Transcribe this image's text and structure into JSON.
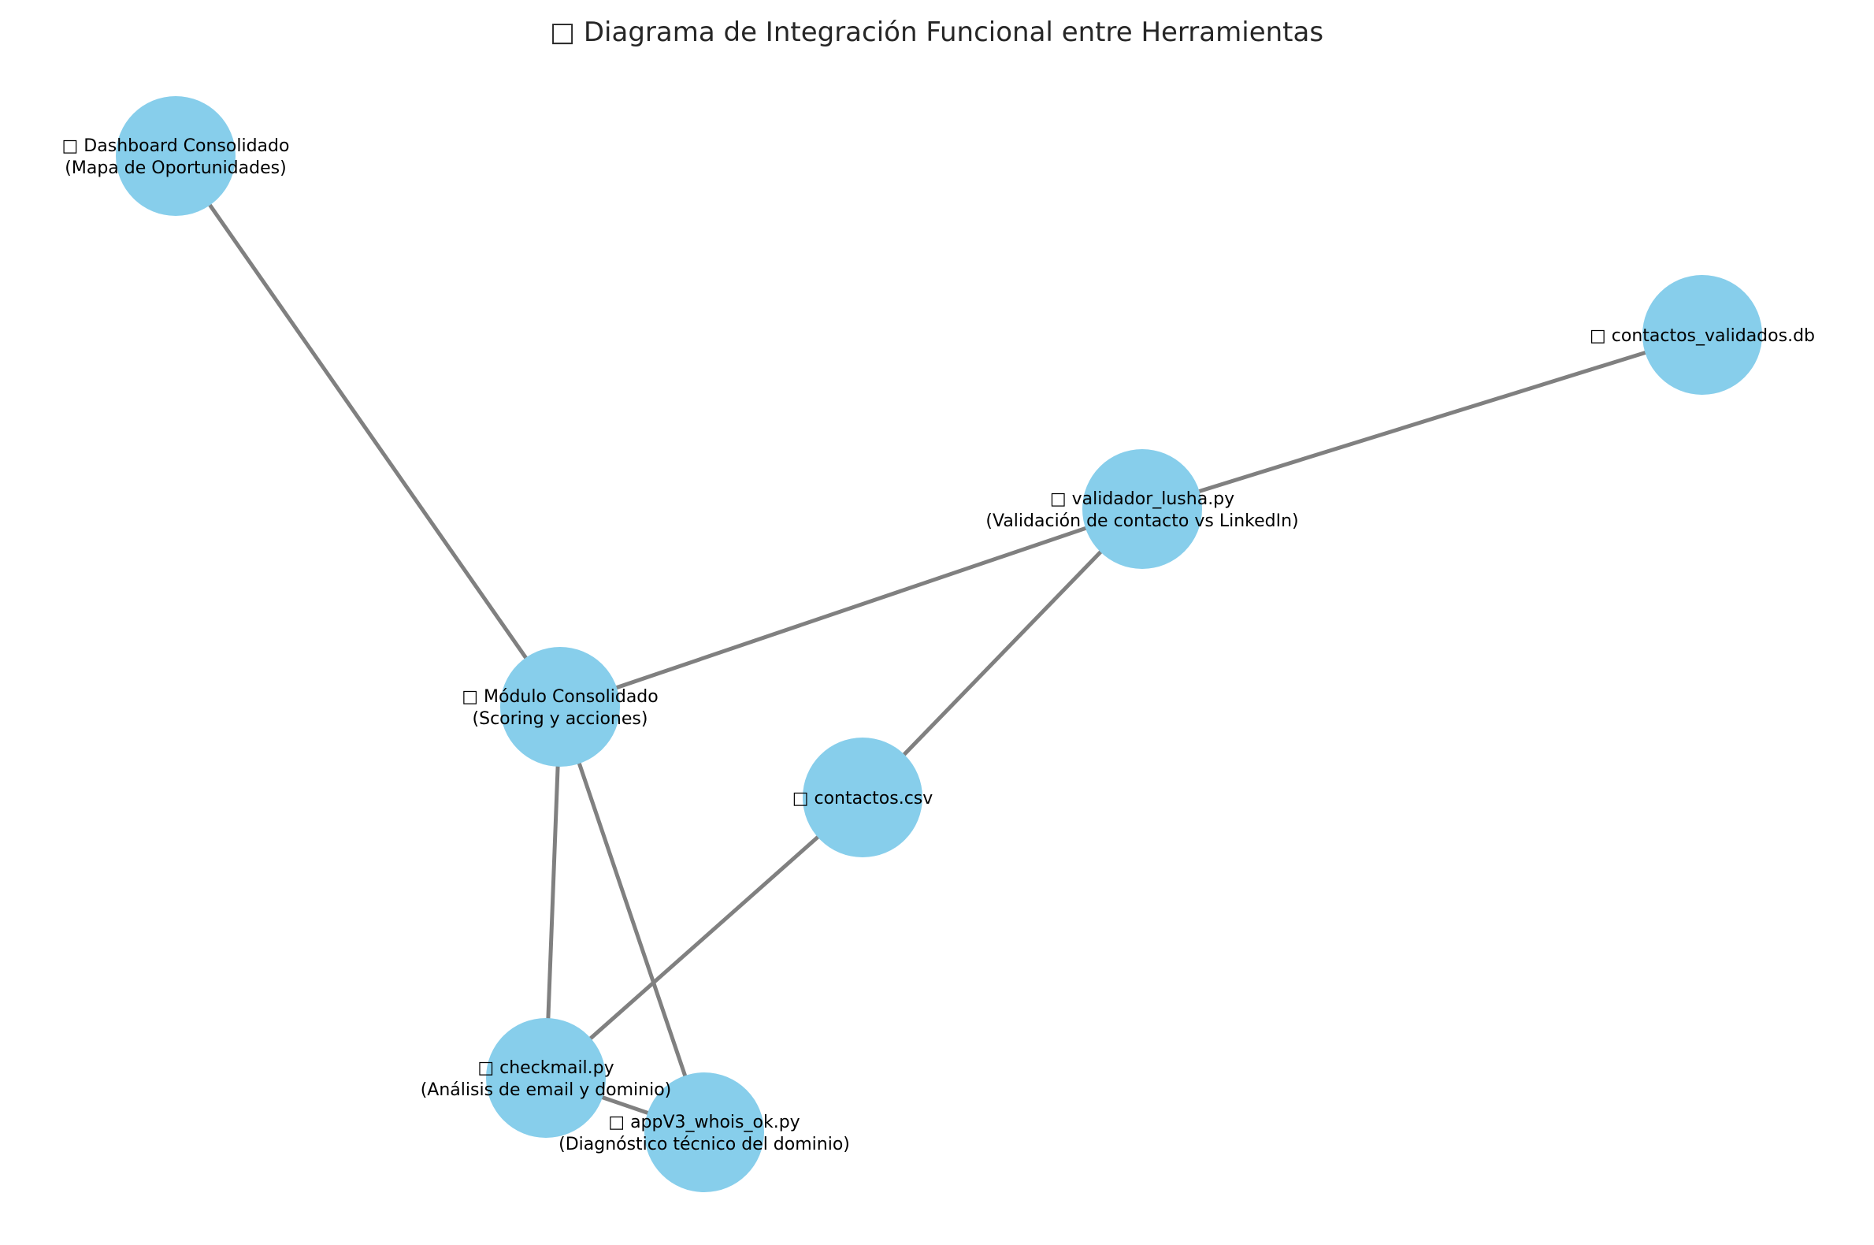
{
  "title": "□ Diagrama de Integración Funcional entre Herramientas",
  "colors": {
    "node": "#87ceeb",
    "edge": "#808080",
    "text": "#000000"
  },
  "nodes": [
    {
      "id": "dashboard",
      "lines": [
        "□ Dashboard Consolidado",
        "(Mapa de Oportunidades)"
      ]
    },
    {
      "id": "contactos_db",
      "lines": [
        "□ contactos_validados.db"
      ]
    },
    {
      "id": "validador",
      "lines": [
        "□ validador_lusha.py",
        "(Validación de contacto vs LinkedIn)"
      ]
    },
    {
      "id": "modulo",
      "lines": [
        "□ Módulo Consolidado",
        "(Scoring y acciones)"
      ]
    },
    {
      "id": "contactos_csv",
      "lines": [
        "□ contactos.csv"
      ]
    },
    {
      "id": "checkmail",
      "lines": [
        "□ checkmail.py",
        "(Análisis de email y dominio)"
      ]
    },
    {
      "id": "appv3",
      "lines": [
        "□ appV3_whois_ok.py",
        "(Diagnóstico técnico del dominio)"
      ]
    }
  ],
  "edges": [
    [
      "dashboard",
      "modulo"
    ],
    [
      "contactos_db",
      "validador"
    ],
    [
      "validador",
      "modulo"
    ],
    [
      "validador",
      "contactos_csv"
    ],
    [
      "contactos_csv",
      "checkmail"
    ],
    [
      "modulo",
      "checkmail"
    ],
    [
      "modulo",
      "appv3"
    ],
    [
      "checkmail",
      "appv3"
    ]
  ]
}
